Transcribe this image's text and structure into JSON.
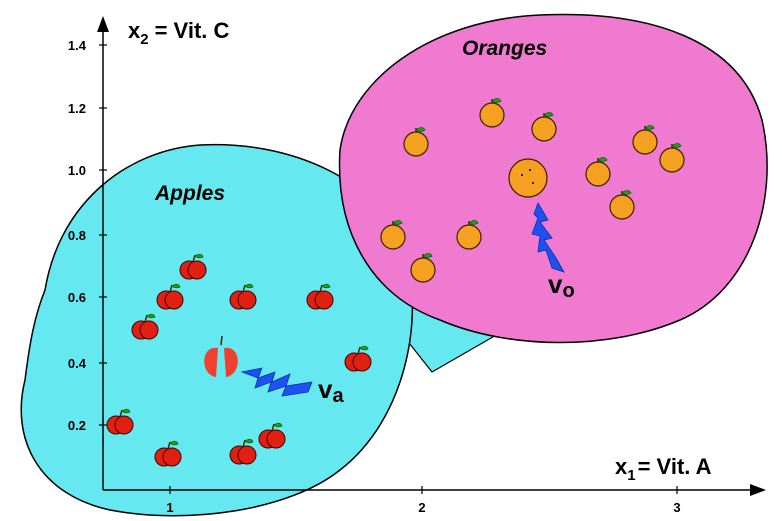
{
  "axes": {
    "y_label": {
      "symbol": "x",
      "subscript": "2",
      "rest": "= Vit. C"
    },
    "x_label": {
      "symbol": "x",
      "subscript": "1",
      "rest": "= Vit. A"
    },
    "y_ticks": [
      "0.2",
      "0.4",
      "0.6",
      "0.8",
      "1.0",
      "1.2",
      "1.4"
    ],
    "x_ticks": [
      "1",
      "2",
      "3"
    ]
  },
  "clusters": [
    {
      "label": "Apples",
      "vector": {
        "symbol": "v",
        "subscript": "a"
      }
    },
    {
      "label": "Oranges",
      "vector": {
        "symbol": "v",
        "subscript": "o"
      }
    }
  ]
}
